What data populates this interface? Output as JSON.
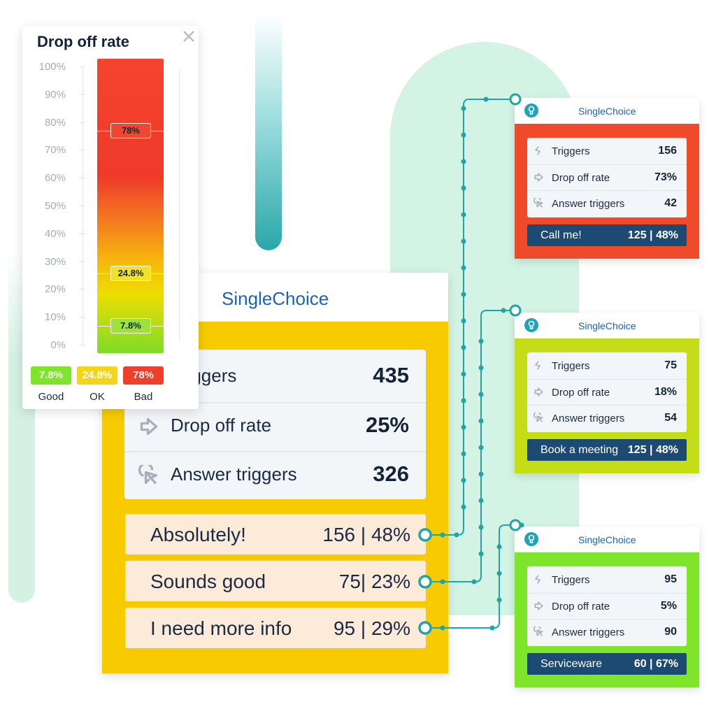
{
  "drop_off_panel": {
    "title": "Drop off rate",
    "scale": [
      "100%",
      "90%",
      "80%",
      "70%",
      "60%",
      "50%",
      "40%",
      "30%",
      "20%",
      "10%",
      "0%"
    ],
    "markers": [
      "78%",
      "24.8%",
      "7.8%"
    ],
    "legend": [
      {
        "value": "7.8%",
        "label": "Good"
      },
      {
        "value": "24.8%",
        "label": "OK"
      },
      {
        "value": "78%",
        "label": "Bad"
      }
    ]
  },
  "main_card": {
    "title": "SingleChoice",
    "stats": [
      {
        "label": "Triggers",
        "value": "435"
      },
      {
        "label": "Drop off rate",
        "value": "25%"
      },
      {
        "label": "Answer triggers",
        "value": "326"
      }
    ],
    "answers": [
      {
        "label": "Absolutely!",
        "value": "156 | 48%"
      },
      {
        "label": "Sounds good",
        "value": "75| 23%"
      },
      {
        "label": "I need more info",
        "value": "95 | 29%"
      }
    ]
  },
  "side_cards": [
    {
      "title": "SingleChoice",
      "stats": [
        {
          "label": "Triggers",
          "value": "156"
        },
        {
          "label": "Drop off rate",
          "value": "73%"
        },
        {
          "label": "Answer triggers",
          "value": "42"
        }
      ],
      "footer_label": "Call me!",
      "footer_value": "125 | 48%"
    },
    {
      "title": "SingleChoice",
      "stats": [
        {
          "label": "Triggers",
          "value": "75"
        },
        {
          "label": "Drop off rate",
          "value": "18%"
        },
        {
          "label": "Answer triggers",
          "value": "54"
        }
      ],
      "footer_label": "Book a meeting",
      "footer_value": "125 | 48%"
    },
    {
      "title": "SingleChoice",
      "stats": [
        {
          "label": "Triggers",
          "value": "95"
        },
        {
          "label": "Drop off rate",
          "value": "5%"
        },
        {
          "label": "Answer triggers",
          "value": "90"
        }
      ],
      "footer_label": "Serviceware",
      "footer_value": "60 | 67%"
    }
  ]
}
